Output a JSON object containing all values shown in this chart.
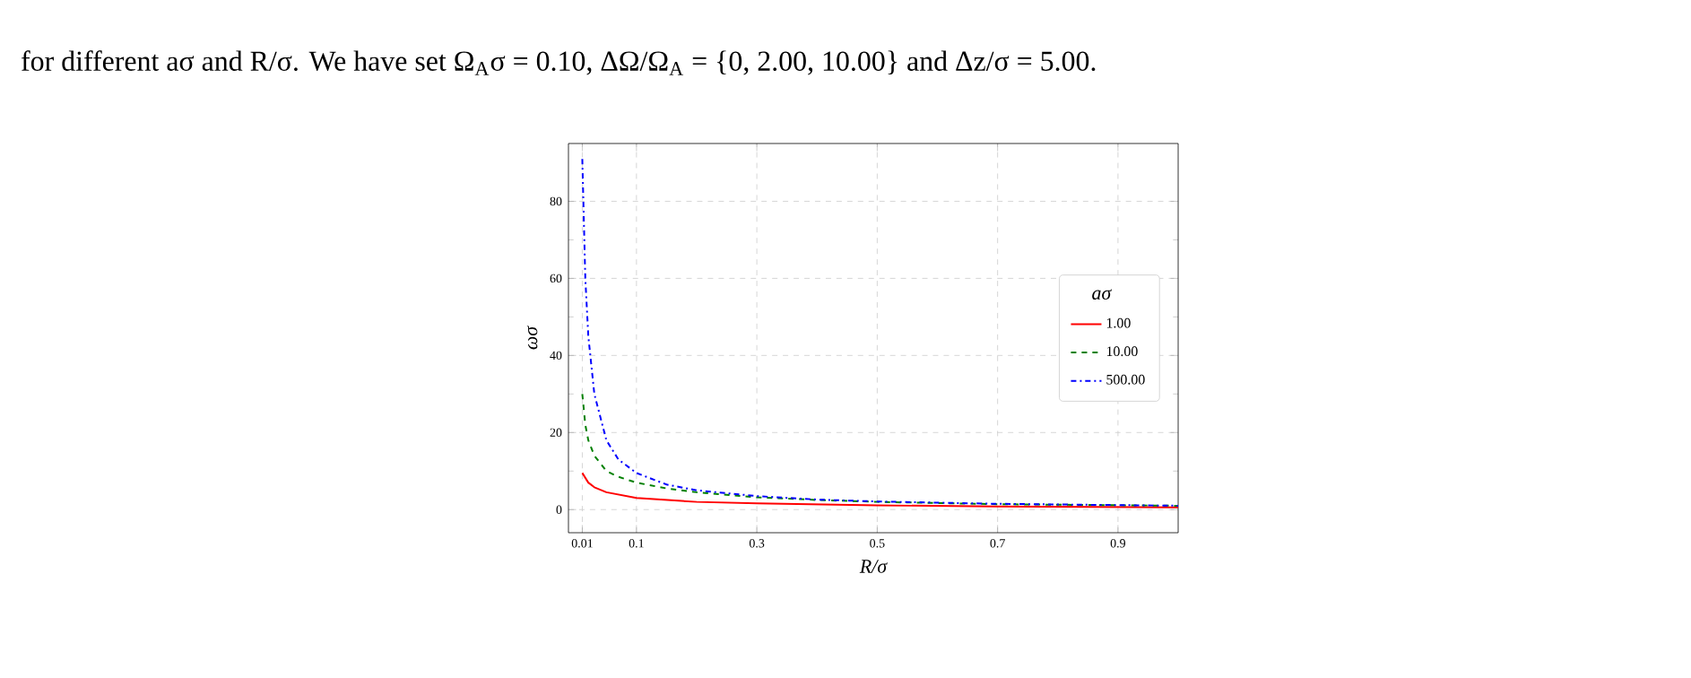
{
  "chart_data": {
    "type": "line",
    "xlabel": "R/σ",
    "ylabel": "ωσ",
    "legend_title": "aσ",
    "annotations": [
      "for different aσ and R/σ. We have set Ω$_{A}$σ = 0.10, ΔΩ/Ω$_{A}$ = {0, 2.00, 10.00} and Δz/σ = 5.00."
    ],
    "xlim": [
      -0.013,
      1.0
    ],
    "ylim": [
      -6,
      95
    ],
    "xticks": [
      0.01,
      0.1,
      0.3,
      0.5,
      0.7,
      0.9
    ],
    "yticks": [
      0,
      20,
      40,
      60,
      80
    ],
    "grid": true,
    "legend": "right",
    "series": [
      {
        "name": "1.00",
        "color": "#ff0000",
        "line_style": "solid",
        "x": [
          0.01,
          0.02,
          0.03,
          0.05,
          0.1,
          0.2,
          0.3,
          0.5,
          0.7,
          1.0
        ],
        "values": [
          9.5,
          7,
          5.8,
          4.5,
          3.0,
          2.0,
          1.6,
          1.1,
          0.8,
          0.6
        ]
      },
      {
        "name": "10.00",
        "color": "#008000",
        "line_style": "dashed",
        "x": [
          0.01,
          0.015,
          0.02,
          0.03,
          0.05,
          0.07,
          0.1,
          0.15,
          0.2,
          0.3,
          0.4,
          0.5,
          0.7,
          1.0
        ],
        "values": [
          30,
          22,
          18,
          14,
          10,
          8.5,
          7,
          5.5,
          4.5,
          3.2,
          2.5,
          2.0,
          1.4,
          1.0
        ]
      },
      {
        "name": "500.00",
        "color": "#0000ff",
        "line_style": "dashdotted",
        "x": [
          0.01,
          0.015,
          0.02,
          0.03,
          0.05,
          0.07,
          0.1,
          0.15,
          0.2,
          0.3,
          0.4,
          0.5,
          0.7,
          1.0
        ],
        "values": [
          91,
          60,
          45,
          30,
          18,
          13,
          9.5,
          6.5,
          5,
          3.5,
          2.6,
          2.1,
          1.5,
          1.0
        ]
      }
    ]
  }
}
